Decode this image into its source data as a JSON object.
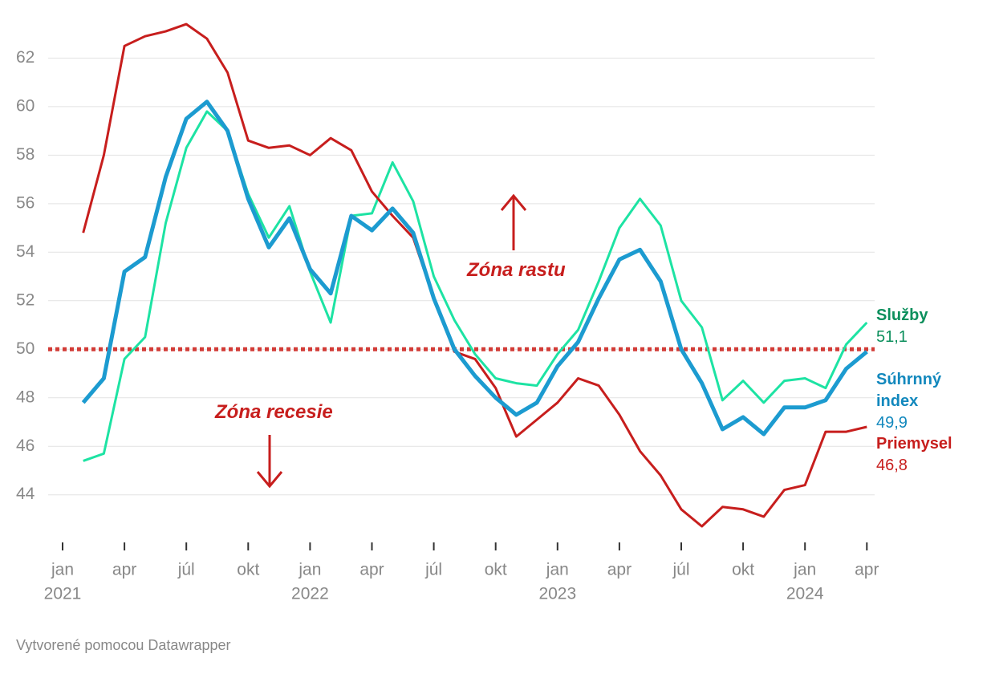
{
  "chart_data": {
    "type": "line",
    "x": [
      "2021-02",
      "2021-03",
      "2021-04",
      "2021-05",
      "2021-06",
      "2021-07",
      "2021-08",
      "2021-09",
      "2021-10",
      "2021-11",
      "2021-12",
      "2022-01",
      "2022-02",
      "2022-03",
      "2022-04",
      "2022-05",
      "2022-06",
      "2022-07",
      "2022-08",
      "2022-09",
      "2022-10",
      "2022-11",
      "2022-12",
      "2023-01",
      "2023-02",
      "2023-03",
      "2023-04",
      "2023-05",
      "2023-06",
      "2023-07",
      "2023-08",
      "2023-09",
      "2023-10",
      "2023-11",
      "2023-12",
      "2024-01",
      "2024-02",
      "2024-03",
      "2024-04"
    ],
    "series": [
      {
        "name": "Služby",
        "color": "#1de3a3",
        "label_color": "#0b8f5c",
        "width": 3,
        "values": [
          45.4,
          45.7,
          49.6,
          50.5,
          55.2,
          58.3,
          59.8,
          59.0,
          56.4,
          54.6,
          55.9,
          53.2,
          51.1,
          55.5,
          55.6,
          57.7,
          56.1,
          53.0,
          51.2,
          49.8,
          48.8,
          48.6,
          48.5,
          49.8,
          50.8,
          52.8,
          55.0,
          56.2,
          55.1,
          52.0,
          50.9,
          47.9,
          48.7,
          47.8,
          48.7,
          48.8,
          48.4,
          50.2,
          51.1
        ],
        "value_labels": [
          null,
          null,
          null,
          null,
          null,
          null,
          null,
          null,
          null,
          null,
          null,
          null,
          null,
          null,
          null,
          null,
          null,
          null,
          null,
          null,
          null,
          null,
          null,
          null,
          null,
          null,
          null,
          null,
          null,
          null,
          null,
          null,
          null,
          null,
          null,
          null,
          null,
          null,
          "51,1"
        ]
      },
      {
        "name": "Súhrnný index",
        "color": "#1c9bd0",
        "label_color": "#1288bd",
        "width": 5,
        "values": [
          47.8,
          48.8,
          53.2,
          53.8,
          57.1,
          59.5,
          60.2,
          59.0,
          56.2,
          54.2,
          55.4,
          53.3,
          52.3,
          55.5,
          54.9,
          55.8,
          54.8,
          52.1,
          50.0,
          48.9,
          48.0,
          47.3,
          47.8,
          49.3,
          50.3,
          52.1,
          53.7,
          54.1,
          52.8,
          50.0,
          48.6,
          46.7,
          47.2,
          46.5,
          47.6,
          47.6,
          47.9,
          49.2,
          49.9
        ],
        "value_labels": [
          null,
          null,
          null,
          null,
          null,
          null,
          null,
          null,
          null,
          null,
          null,
          null,
          null,
          null,
          null,
          null,
          null,
          null,
          null,
          null,
          null,
          null,
          null,
          null,
          null,
          null,
          null,
          null,
          null,
          null,
          null,
          null,
          null,
          null,
          null,
          null,
          null,
          null,
          "49,9"
        ]
      },
      {
        "name": "Priemysel",
        "color": "#c71e1d",
        "label_color": "#c71e1d",
        "width": 3,
        "values": [
          54.8,
          58.0,
          62.5,
          62.9,
          63.1,
          63.4,
          62.8,
          61.4,
          58.6,
          58.3,
          58.4,
          58.0,
          58.7,
          58.2,
          56.5,
          55.5,
          54.6,
          52.1,
          49.9,
          49.6,
          48.4,
          46.4,
          47.1,
          47.8,
          48.8,
          48.5,
          47.3,
          45.8,
          44.8,
          43.4,
          42.7,
          43.5,
          43.4,
          43.1,
          44.2,
          44.4,
          46.6,
          46.6,
          46.8
        ],
        "value_labels": [
          null,
          null,
          null,
          null,
          null,
          null,
          null,
          null,
          null,
          null,
          null,
          null,
          null,
          null,
          null,
          null,
          null,
          null,
          null,
          null,
          null,
          null,
          null,
          null,
          null,
          null,
          null,
          null,
          null,
          null,
          null,
          null,
          null,
          null,
          null,
          null,
          null,
          null,
          "46,8"
        ]
      }
    ],
    "ylim": [
      42.7,
      63.7
    ],
    "yticks": [
      44,
      46,
      48,
      50,
      52,
      54,
      56,
      58,
      60,
      62
    ],
    "grid": true,
    "xticks": [
      {
        "value": "2021-01",
        "label": "jan"
      },
      {
        "value": "2021-04",
        "label": "apr"
      },
      {
        "value": "2021-07",
        "label": "júl"
      },
      {
        "value": "2021-10",
        "label": "okt"
      },
      {
        "value": "2022-01",
        "label": "jan"
      },
      {
        "value": "2022-04",
        "label": "apr"
      },
      {
        "value": "2022-07",
        "label": "júl"
      },
      {
        "value": "2022-10",
        "label": "okt"
      },
      {
        "value": "2023-01",
        "label": "jan"
      },
      {
        "value": "2023-04",
        "label": "apr"
      },
      {
        "value": "2023-07",
        "label": "júl"
      },
      {
        "value": "2023-10",
        "label": "okt"
      },
      {
        "value": "2024-01",
        "label": "jan"
      },
      {
        "value": "2024-04",
        "label": "apr"
      }
    ],
    "xtick_years": [
      {
        "value": "2021-01",
        "label": "2021"
      },
      {
        "value": "2022-01",
        "label": "2022"
      },
      {
        "value": "2023-01",
        "label": "2023"
      },
      {
        "value": "2024-01",
        "label": "2024"
      }
    ],
    "reference_line": {
      "value": 50,
      "color": "#d23b36"
    },
    "annotations": [
      {
        "text": "Zóna rastu",
        "color": "#c71e1d"
      },
      {
        "text": "Zóna recesie",
        "color": "#c71e1d"
      }
    ],
    "footer": "Vytvorené pomocou Datawrapper"
  }
}
